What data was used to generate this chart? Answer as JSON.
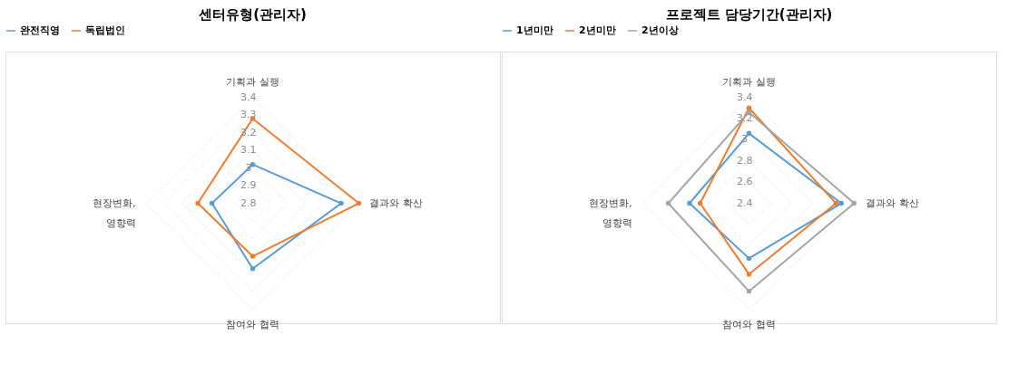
{
  "chart_data": [
    {
      "type": "radar",
      "title": "센터유형(관리자)",
      "categories": [
        "기획과 실행",
        "결과와 확산",
        "참여와 협력",
        "현장변화,\n영향력"
      ],
      "ylim": [
        2.8,
        3.4
      ],
      "yticks": [
        2.8,
        2.9,
        3,
        3.1,
        3.2,
        3.3,
        3.4
      ],
      "grid": true,
      "legend": "top",
      "marker": "circle",
      "series": [
        {
          "name": "완전직영",
          "color": "#5b9bd5",
          "values": [
            3.02,
            3.3,
            3.17,
            3.03
          ]
        },
        {
          "name": "독립법인",
          "color": "#ed7d31",
          "values": [
            3.28,
            3.4,
            3.1,
            3.11
          ]
        }
      ]
    },
    {
      "type": "radar",
      "title": "프로젝트 담당기간(관리자)",
      "categories": [
        "기획과 실행",
        "결과와 확산",
        "참여와 협력",
        "현장변화,\n영향력"
      ],
      "ylim": [
        2.4,
        3.4
      ],
      "yticks": [
        2.4,
        2.6,
        2.8,
        3,
        3.2,
        3.4
      ],
      "grid": true,
      "legend": "top",
      "marker": "circle",
      "series": [
        {
          "name": "1년미만",
          "color": "#5b9bd5",
          "values": [
            3.06,
            3.27,
            2.92,
            2.96
          ]
        },
        {
          "name": "2년미만",
          "color": "#ed7d31",
          "values": [
            3.3,
            3.22,
            3.07,
            2.86
          ]
        },
        {
          "name": "2년이상",
          "color": "#a5a5a5",
          "values": [
            3.26,
            3.39,
            3.23,
            3.16
          ]
        }
      ]
    }
  ]
}
